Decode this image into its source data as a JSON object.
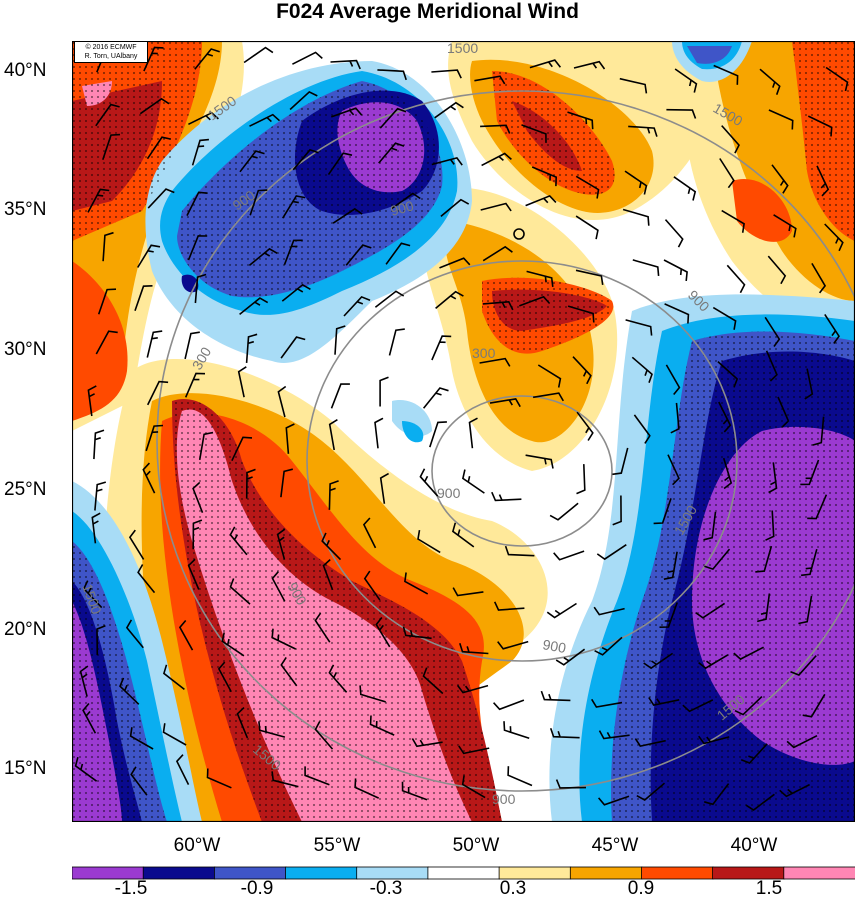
{
  "title": "F024 Average Meridional Wind",
  "credit": {
    "line1": "© 2016 ECMWF",
    "line2": "R. Torn, UAlbany"
  },
  "axes": {
    "lat_ticks": [
      "40°N",
      "35°N",
      "30°N",
      "25°N",
      "20°N",
      "15°N"
    ],
    "lon_ticks": [
      "60°W",
      "55°W",
      "50°W",
      "45°W",
      "40°W"
    ]
  },
  "contour_labels": [
    "1500",
    "1500",
    "1500",
    "900",
    "900",
    "900",
    "300",
    "300",
    "900",
    "900",
    "900",
    "1500",
    "1500",
    "1500",
    "1500",
    "900"
  ],
  "colorbar": {
    "labels": [
      "-1.5",
      "-0.9",
      "-0.3",
      "0.3",
      "0.9",
      "1.5"
    ],
    "colors": [
      "#9b3ad1",
      "#0a0a8e",
      "#3f55c8",
      "#0aaef0",
      "#a8dcf6",
      "#ffffff",
      "#ffe99a",
      "#f7a500",
      "#ff4a00",
      "#b81818",
      "#ff86b4"
    ]
  }
}
